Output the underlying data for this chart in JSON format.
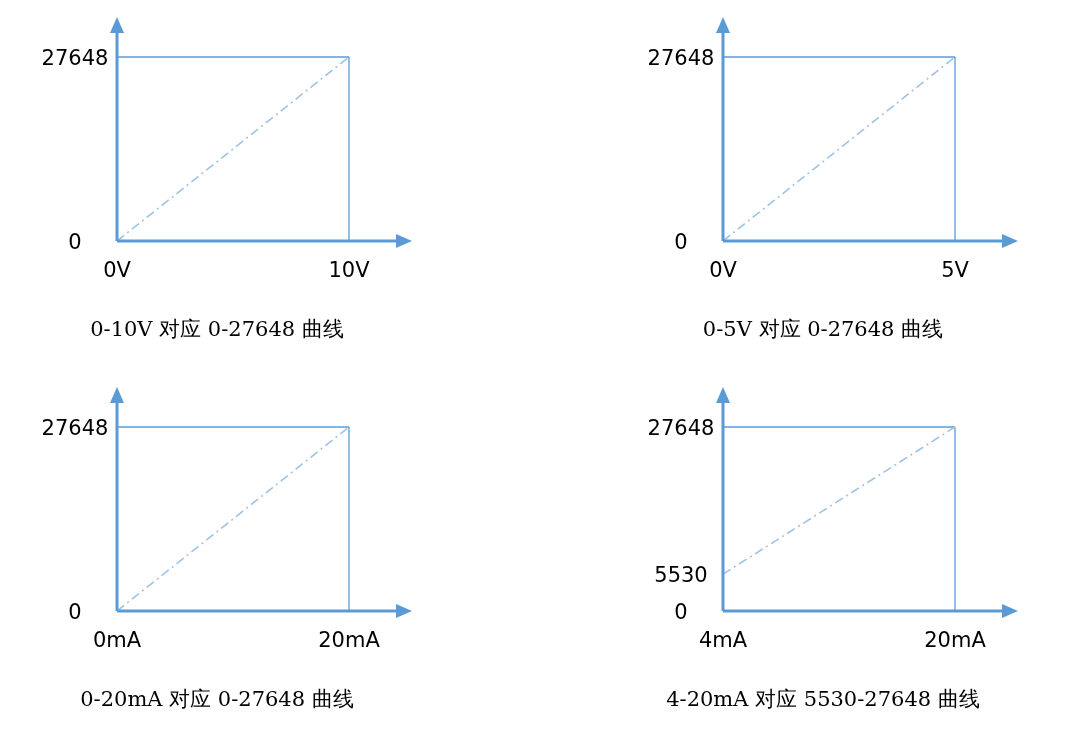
{
  "chart_data": [
    {
      "type": "line",
      "title": "0-10V 对应 0-27648 曲线",
      "x": [
        0,
        10
      ],
      "series": [
        {
          "color": "#9dc3e6",
          "values": [
            0,
            27648
          ],
          "line_style": "dashed"
        }
      ],
      "xlim": [
        0,
        10
      ],
      "ylim": [
        0,
        27648
      ],
      "xticks": [
        {
          "value": 0,
          "label": "0V"
        },
        {
          "value": 10,
          "label": "10V"
        }
      ],
      "yticks": [
        0,
        27648
      ],
      "ref_lines": [
        {
          "axis": "y",
          "value": 27648,
          "color": "#5b9bd5"
        },
        {
          "axis": "x",
          "value": 10,
          "color": "#5b9bd5"
        }
      ]
    },
    {
      "type": "line",
      "title": "0-5V 对应 0-27648 曲线",
      "x": [
        0,
        5
      ],
      "series": [
        {
          "color": "#9dc3e6",
          "values": [
            0,
            27648
          ],
          "line_style": "dashed"
        }
      ],
      "xlim": [
        0,
        5
      ],
      "ylim": [
        0,
        27648
      ],
      "xticks": [
        {
          "value": 0,
          "label": "0V"
        },
        {
          "value": 5,
          "label": "5V"
        }
      ],
      "yticks": [
        0,
        27648
      ],
      "ref_lines": [
        {
          "axis": "y",
          "value": 27648,
          "color": "#5b9bd5"
        },
        {
          "axis": "x",
          "value": 5,
          "color": "#5b9bd5"
        }
      ]
    },
    {
      "type": "line",
      "title": "0-20mA 对应 0-27648 曲线",
      "x": [
        0,
        20
      ],
      "series": [
        {
          "color": "#9dc3e6",
          "values": [
            0,
            27648
          ],
          "line_style": "dashed"
        }
      ],
      "xlim": [
        0,
        20
      ],
      "ylim": [
        0,
        27648
      ],
      "xticks": [
        {
          "value": 0,
          "label": "0mA"
        },
        {
          "value": 20,
          "label": "20mA"
        }
      ],
      "yticks": [
        0,
        27648
      ],
      "ref_lines": [
        {
          "axis": "y",
          "value": 27648,
          "color": "#5b9bd5"
        },
        {
          "axis": "x",
          "value": 20,
          "color": "#5b9bd5"
        }
      ]
    },
    {
      "type": "line",
      "title": "4-20mA 对应 5530-27648 曲线",
      "x": [
        4,
        20
      ],
      "series": [
        {
          "color": "#9dc3e6",
          "values": [
            5530,
            27648
          ],
          "line_style": "dashed"
        }
      ],
      "xlim": [
        4,
        20
      ],
      "ylim": [
        0,
        27648
      ],
      "xticks": [
        {
          "value": 4,
          "label": "4mA"
        },
        {
          "value": 20,
          "label": "20mA"
        }
      ],
      "yticks": [
        0,
        5530,
        27648
      ],
      "ref_lines": [
        {
          "axis": "y",
          "value": 27648,
          "color": "#5b9bd5"
        },
        {
          "axis": "x",
          "value": 20,
          "color": "#5b9bd5"
        }
      ]
    }
  ]
}
